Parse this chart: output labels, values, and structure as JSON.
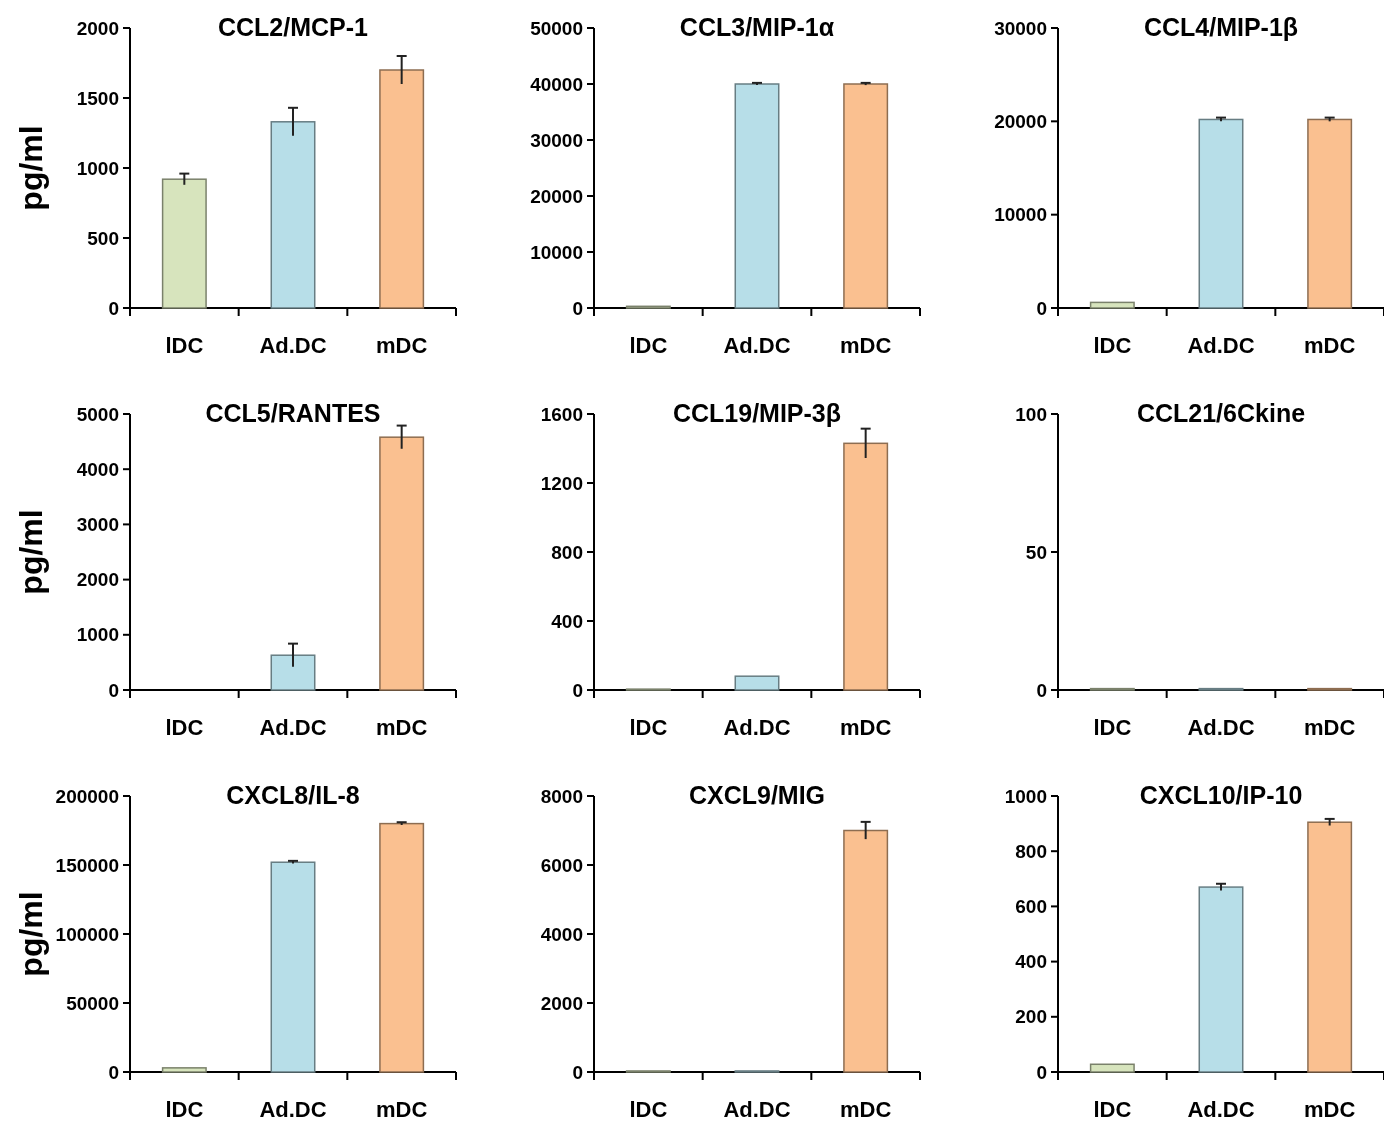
{
  "chart_data": [
    {
      "type": "bar",
      "title": "CCL2/MCP-1",
      "ylabel": "pg/ml",
      "categories": [
        "lDC",
        "Ad.DC",
        "mDC"
      ],
      "values": [
        920,
        1330,
        1700
      ],
      "errors": [
        40,
        100,
        100
      ],
      "colors": [
        "#d7e4bd",
        "#b7dee8",
        "#fac090"
      ],
      "ylim": [
        0,
        2000
      ],
      "yticks": [
        0,
        500,
        1000,
        1500,
        2000
      ]
    },
    {
      "type": "bar",
      "title": "CCL3/MIP-1α",
      "categories": [
        "lDC",
        "Ad.DC",
        "mDC"
      ],
      "values": [
        300,
        40000,
        40000
      ],
      "errors": [
        null,
        200,
        200
      ],
      "colors": [
        "#d7e4bd",
        "#b7dee8",
        "#fac090"
      ],
      "ylim": [
        0,
        50000
      ],
      "yticks": [
        0,
        10000,
        20000,
        30000,
        40000,
        50000
      ]
    },
    {
      "type": "bar",
      "title": "CCL4/MIP-1β",
      "categories": [
        "lDC",
        "Ad.DC",
        "mDC"
      ],
      "values": [
        600,
        20200,
        20200
      ],
      "errors": [
        null,
        200,
        200
      ],
      "colors": [
        "#d7e4bd",
        "#b7dee8",
        "#fac090"
      ],
      "ylim": [
        0,
        30000
      ],
      "yticks": [
        0,
        10000,
        20000,
        30000
      ]
    },
    {
      "type": "bar",
      "title": "CCL5/RANTES",
      "ylabel": "pg/ml",
      "categories": [
        "lDC",
        "Ad.DC",
        "mDC"
      ],
      "values": [
        0,
        630,
        4580
      ],
      "errors": [
        null,
        210,
        210
      ],
      "colors": [
        "#d7e4bd",
        "#b7dee8",
        "#fac090"
      ],
      "ylim": [
        0,
        5000
      ],
      "yticks": [
        0,
        1000,
        2000,
        3000,
        4000,
        5000
      ]
    },
    {
      "type": "bar",
      "title": "CCL19/MIP-3β",
      "categories": [
        "lDC",
        "Ad.DC",
        "mDC"
      ],
      "values": [
        5,
        80,
        1430
      ],
      "errors": [
        null,
        null,
        85
      ],
      "colors": [
        "#d7e4bd",
        "#b7dee8",
        "#fac090"
      ],
      "ylim": [
        0,
        1600
      ],
      "yticks": [
        0,
        400,
        800,
        1200,
        1600
      ]
    },
    {
      "type": "bar",
      "title": "CCL21/6Ckine",
      "categories": [
        "lDC",
        "Ad.DC",
        "mDC"
      ],
      "values": [
        0.5,
        0.5,
        0.5
      ],
      "colors": [
        "#d7e4bd",
        "#b7dee8",
        "#fac090"
      ],
      "ylim": [
        0,
        100
      ],
      "yticks": [
        0,
        50,
        100
      ]
    },
    {
      "type": "bar",
      "title": "CXCL8/IL-8",
      "ylabel": "pg/ml",
      "categories": [
        "lDC",
        "Ad.DC",
        "mDC"
      ],
      "values": [
        3000,
        152000,
        180000
      ],
      "errors": [
        null,
        1000,
        1000
      ],
      "colors": [
        "#d7e4bd",
        "#b7dee8",
        "#fac090"
      ],
      "ylim": [
        0,
        200000
      ],
      "yticks": [
        0,
        50000,
        100000,
        150000,
        200000
      ]
    },
    {
      "type": "bar",
      "title": "CXCL9/MIG",
      "categories": [
        "lDC",
        "Ad.DC",
        "mDC"
      ],
      "values": [
        30,
        30,
        7000
      ],
      "errors": [
        null,
        null,
        250
      ],
      "colors": [
        "#d7e4bd",
        "#b7dee8",
        "#fac090"
      ],
      "ylim": [
        0,
        8000
      ],
      "yticks": [
        0,
        2000,
        4000,
        6000,
        8000
      ]
    },
    {
      "type": "bar",
      "title": "CXCL10/IP-10",
      "categories": [
        "lDC",
        "Ad.DC",
        "mDC"
      ],
      "values": [
        28,
        670,
        905
      ],
      "errors": [
        null,
        12,
        12
      ],
      "colors": [
        "#d7e4bd",
        "#b7dee8",
        "#fac090"
      ],
      "ylim": [
        0,
        1000
      ],
      "yticks": [
        0,
        200,
        400,
        600,
        800,
        1000
      ]
    }
  ]
}
